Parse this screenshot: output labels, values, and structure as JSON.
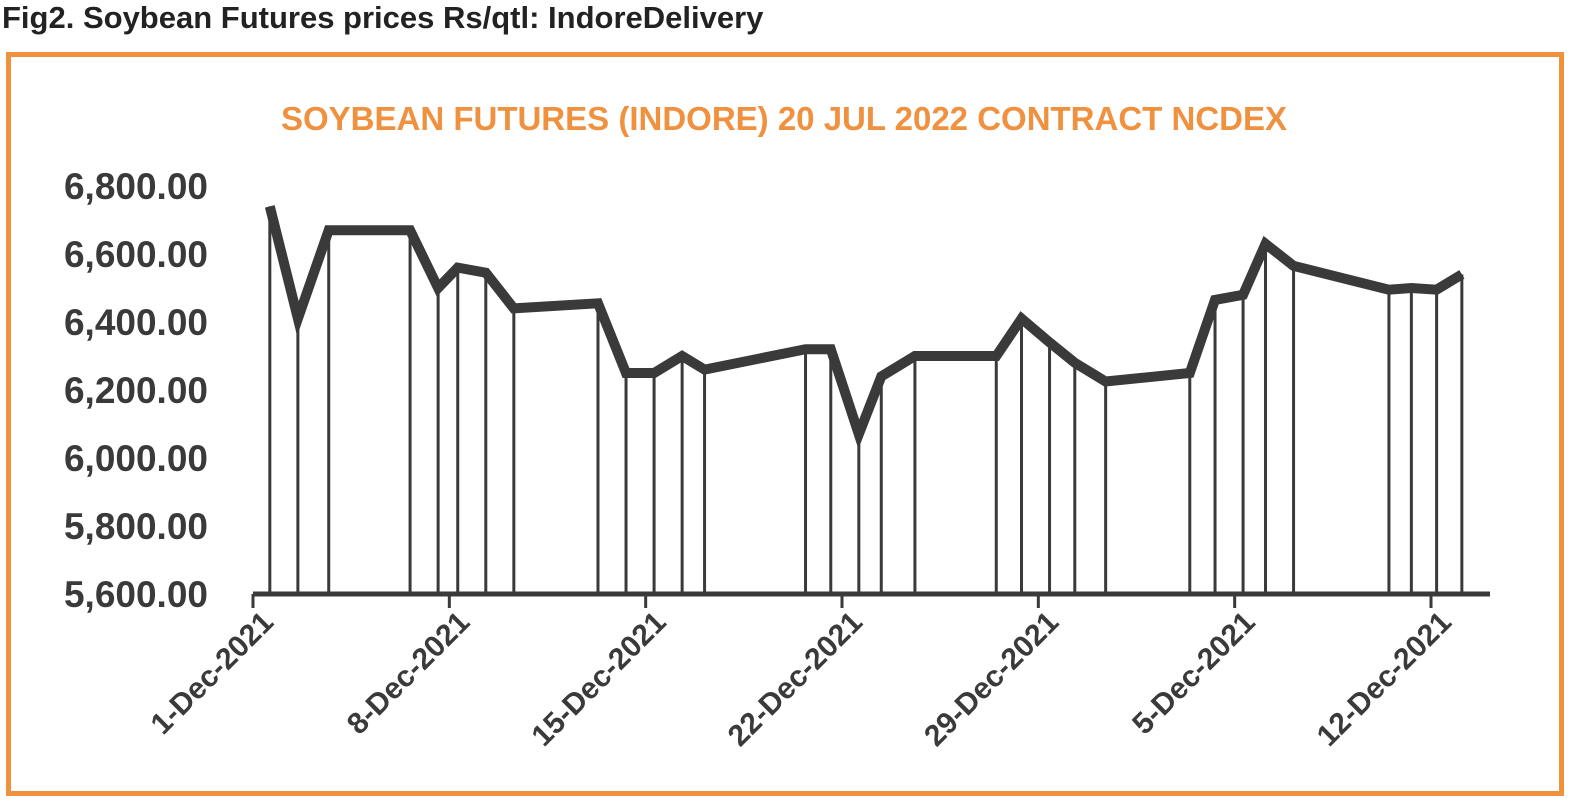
{
  "figure_caption": "Fig2. Soybean Futures prices Rs/qtl: IndoreDelivery",
  "colors": {
    "frame": "#F0913F",
    "title": "#F0913F",
    "line": "#3a3a3a",
    "axis": "#3a3a3a",
    "text": "#3a3a3a"
  },
  "chart_data": {
    "type": "line",
    "title": "SOYBEAN FUTURES (INDORE) 20 JUL 2022 CONTRACT NCDEX",
    "xlabel": "",
    "ylabel": "",
    "ylim": [
      5600,
      6800
    ],
    "yticks": [
      5600,
      5800,
      6000,
      6200,
      6400,
      6600,
      6800
    ],
    "ytick_labels": [
      "5,600.00",
      "5,800.00",
      "6,000.00",
      "6,200.00",
      "6,400.00",
      "6,600.00",
      "6,800.00"
    ],
    "x_day_range": [
      0,
      42
    ],
    "xticks": [
      0,
      7,
      14,
      21,
      28,
      35,
      42
    ],
    "xtick_labels": [
      "1-Dec-2021",
      "8-Dec-2021",
      "15-Dec-2021",
      "22-Dec-2021",
      "29-Dec-2021",
      "5-Dec-2021",
      "12-Dec-2021"
    ],
    "drop_lines": true,
    "grid": false,
    "legend": "none",
    "series": [
      {
        "x": [
          0.6,
          1.6,
          2.7,
          5.6,
          6.6,
          7.3,
          8.3,
          9.3,
          12.3,
          13.3,
          14.3,
          15.3,
          16.1,
          19.7,
          20.6,
          21.6,
          22.4,
          23.6,
          26.5,
          27.4,
          28.4,
          29.3,
          30.4,
          33.4,
          34.3,
          35.3,
          36.1,
          37.1,
          40.5,
          41.3,
          42.2,
          43.1
        ],
        "y": [
          6740,
          6410,
          6670,
          6670,
          6500,
          6560,
          6545,
          6440,
          6455,
          6250,
          6250,
          6300,
          6260,
          6320,
          6320,
          6070,
          6240,
          6300,
          6300,
          6410,
          6340,
          6280,
          6225,
          6250,
          6465,
          6480,
          6630,
          6565,
          6495,
          6500,
          6495,
          6540
        ]
      }
    ]
  }
}
